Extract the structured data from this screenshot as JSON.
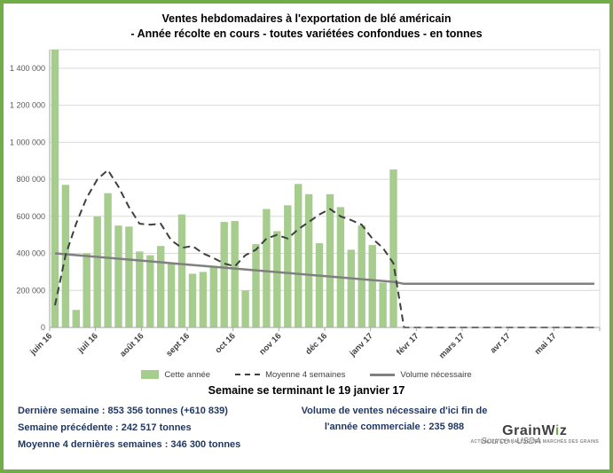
{
  "title": {
    "line1": "Ventes hebdomadaires à l'exportation de blé américain",
    "line2": "- Année récolte en cours - toutes variétées confondues - en tonnes"
  },
  "chart_data": {
    "type": "bar",
    "weeks_total": 52,
    "ylim": [
      0,
      1500000
    ],
    "y_ticks": [
      0,
      200000,
      400000,
      600000,
      800000,
      1000000,
      1200000,
      1400000
    ],
    "x_months": [
      "juin 16",
      "juil 16",
      "août 16",
      "sept 16",
      "oct 16",
      "nov 16",
      "déc 16",
      "janv 17",
      "févr 17",
      "mars 17",
      "avr 17",
      "mai 17"
    ],
    "grid": "horizontal",
    "legend_position": "bottom",
    "series": [
      {
        "name": "Cette année",
        "type": "bar",
        "color": "#a6cd8e",
        "values": [
          1500000,
          770000,
          95000,
          400000,
          600000,
          725000,
          550000,
          545000,
          410000,
          390000,
          440000,
          345000,
          610000,
          290000,
          300000,
          330000,
          570000,
          575000,
          200000,
          450000,
          640000,
          520000,
          660000,
          775000,
          720000,
          455000,
          720000,
          650000,
          420000,
          550000,
          445000,
          242517,
          853356
        ]
      },
      {
        "name": "Moyenne 4 semaines",
        "type": "line-dashed",
        "color": "#3f3f3f",
        "values": [
          120000,
          390000,
          560000,
          700000,
          800000,
          850000,
          760000,
          650000,
          560000,
          555000,
          560000,
          470000,
          430000,
          440000,
          400000,
          375000,
          345000,
          330000,
          390000,
          420000,
          480000,
          500000,
          480000,
          530000,
          570000,
          610000,
          640000,
          600000,
          580000,
          555000,
          480000,
          430000,
          346300,
          0,
          0,
          0,
          0,
          0,
          0,
          0,
          0,
          0,
          0,
          0,
          0,
          0,
          0,
          0,
          0,
          0,
          0,
          0
        ]
      },
      {
        "name": "Volume nécessaire",
        "type": "line",
        "color": "#808080",
        "values": [
          400000,
          395200,
          390400,
          385600,
          380800,
          376000,
          371200,
          366400,
          361600,
          356800,
          352000,
          347200,
          342400,
          337600,
          332800,
          328000,
          323200,
          318400,
          313600,
          308800,
          304000,
          299200,
          294400,
          289600,
          284800,
          280000,
          275200,
          270400,
          265600,
          260800,
          256000,
          251200,
          246400,
          236000,
          236000,
          236000,
          236000,
          236000,
          236000,
          236000,
          236000,
          236000,
          236000,
          236000,
          236000,
          236000,
          236000,
          236000,
          236000,
          236000,
          236000,
          236000
        ]
      }
    ]
  },
  "subtitle": "Semaine se terminant le 19 janvier 17",
  "footer": {
    "stats_left": [
      "Dernière semaine : 853 356 tonnes (+610 839)",
      "Semaine précédente : 242 517 tonnes",
      "Moyenne 4 dernières semaines : 346 300 tonnes"
    ],
    "stats_right_line1": "Volume de ventes nécessaire d'ici fin de",
    "stats_right_line2": "l'année commerciale : 235 988",
    "source": "Source : USDA",
    "logo": {
      "main": "Grain",
      "w": "W",
      "accent": "i",
      "end": "z",
      "tagline": "ACTUALITÉ ET ANALYSE DES MARCHÉS DES GRAINS"
    }
  },
  "colors": {
    "frame": "#70ad47",
    "bar": "#a6cd8e",
    "avg4": "#3f3f3f",
    "needed": "#808080",
    "stats_text": "#1f3864"
  }
}
